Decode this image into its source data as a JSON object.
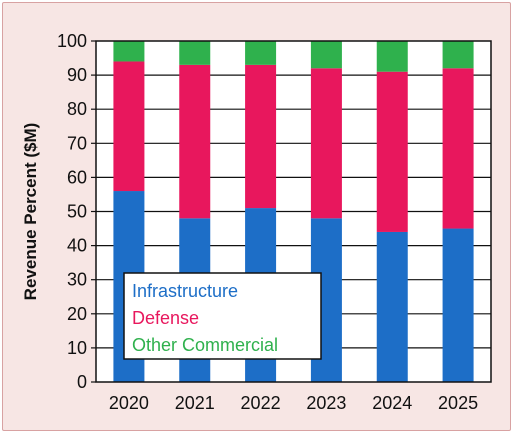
{
  "chart_data": {
    "type": "bar",
    "stacked": true,
    "title": "",
    "xlabel": "",
    "ylabel": "Revenue Percent ($M)",
    "ylim": [
      0,
      100
    ],
    "yticks": [
      0,
      10,
      20,
      30,
      40,
      50,
      60,
      70,
      80,
      90,
      100
    ],
    "categories": [
      "2020",
      "2021",
      "2022",
      "2023",
      "2024",
      "2025"
    ],
    "series": [
      {
        "name": "Infrastructure",
        "color": "#1d6ec7",
        "values": [
          56,
          48,
          51,
          48,
          44,
          45
        ]
      },
      {
        "name": "Defense",
        "color": "#e8175d",
        "values": [
          38,
          45,
          42,
          44,
          47,
          47
        ]
      },
      {
        "name": "Other Commercial",
        "color": "#2fb14d",
        "values": [
          6,
          7,
          7,
          8,
          9,
          8
        ]
      }
    ],
    "grid": true,
    "legend_position": "bottom-left"
  }
}
